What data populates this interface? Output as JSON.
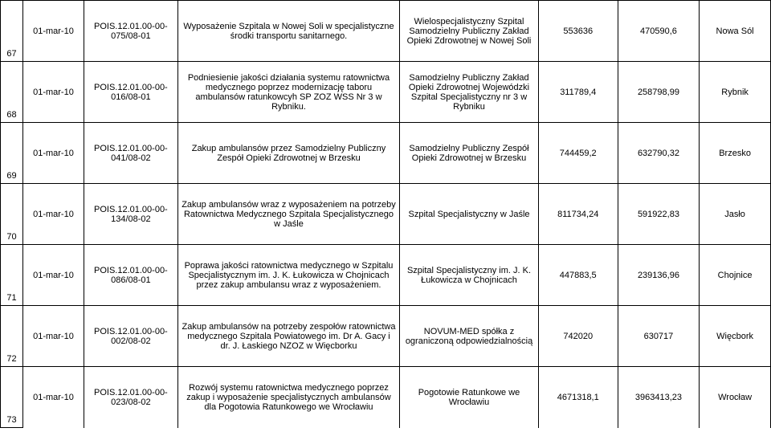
{
  "rows": [
    {
      "idx": "67",
      "date": "01-mar-10",
      "code": "POIS.12.01.00-00-075/08-01",
      "desc": "Wyposażenie Szpitala w Nowej Soli w specjalistyczne środki transportu sanitarnego.",
      "org": "Wielospecjalistyczny Szpital Samodzielny Publiczny Zakład Opieki Zdrowotnej w Nowej Soli",
      "v1": "553636",
      "v2": "470590,6",
      "city": "Nowa Sól"
    },
    {
      "idx": "68",
      "date": "01-mar-10",
      "code": "POIS.12.01.00-00-016/08-01",
      "desc": "Podniesienie jakości działania systemu ratownictwa medycznego poprzez modernizację taboru ambulansów ratunkowcyh SP ZOZ WSS Nr 3 w Rybniku.",
      "org": "Samodzielny Publiczny Zakład Opieki Zdrowotnej Wojewódzki Szpital Specjalistyczny nr 3 w Rybniku",
      "v1": "311789,4",
      "v2": "258798,99",
      "city": "Rybnik"
    },
    {
      "idx": "69",
      "date": "01-mar-10",
      "code": "POIS.12.01.00-00-041/08-02",
      "desc": "Zakup ambulansów przez Samodzielny Publiczny Zespół Opieki Zdrowotnej w Brzesku",
      "org": "Samodzielny Publiczny Zespół Opieki Zdrowotnej w Brzesku",
      "v1": "744459,2",
      "v2": "632790,32",
      "city": "Brzesko"
    },
    {
      "idx": "70",
      "date": "01-mar-10",
      "code": "POIS.12.01.00-00-134/08-02",
      "desc": "Zakup ambulansów wraz z wyposażeniem na potrzeby Ratownictwa Medycznego Szpitala Specjalistycznego w Jaśle",
      "org": "Szpital Specjalistyczny w Jaśle",
      "v1": "811734,24",
      "v2": "591922,83",
      "city": "Jasło"
    },
    {
      "idx": "71",
      "date": "01-mar-10",
      "code": "POIS.12.01.00-00-086/08-01",
      "desc": "Poprawa jakości ratownictwa medycznego w Szpitalu Specjalistycznym im. J. K. Łukowicza w Chojnicach przez zakup ambulansu wraz z wyposażeniem.",
      "org": "Szpital Specjalistyczny im. J. K. Łukowicza w Chojnicach",
      "v1": "447883,5",
      "v2": "239136,96",
      "city": "Chojnice"
    },
    {
      "idx": "72",
      "date": "01-mar-10",
      "code": "POIS.12.01.00-00-002/08-02",
      "desc": "Zakup ambulansów na potrzeby zespołów ratownictwa medycznego Szpitala Powiatowego im. Dr A. Gacy i dr. J. Łaskiego NZOZ w Więcborku",
      "org": "NOVUM-MED spółka z ograniczoną odpowiedzialnością",
      "v1": "742020",
      "v2": "630717",
      "city": "Więcbork"
    },
    {
      "idx": "73",
      "date": "01-mar-10",
      "code": "POIS.12.01.00-00-023/08-02",
      "desc": "Rozwój systemu ratownictwa medycznego poprzez zakup i wyposażenie specjalistycznych ambulansów dla Pogotowia Ratunkowego we Wrocławiu",
      "org": "Pogotowie Ratunkowe we Wrocławiu",
      "v1": "4671318,1",
      "v2": "3963413,23",
      "city": "Wrocław"
    }
  ]
}
